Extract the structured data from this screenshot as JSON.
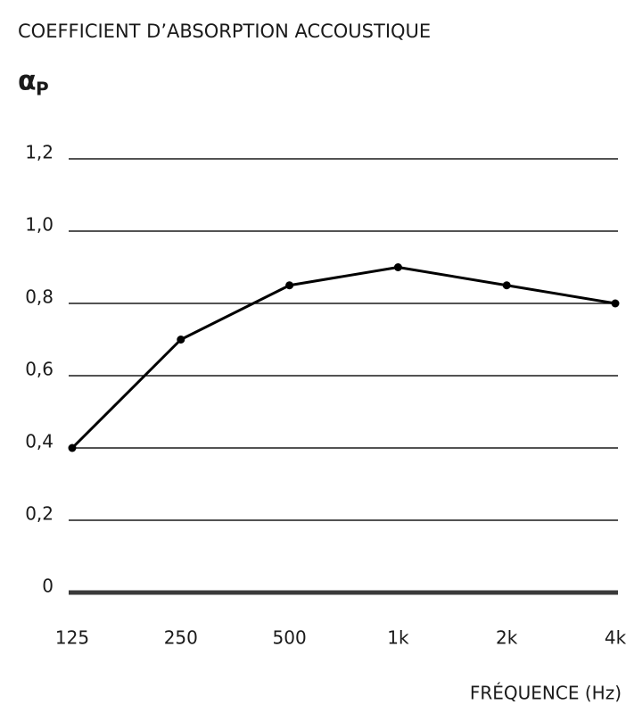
{
  "chart_data": {
    "type": "line",
    "title": "COEFFICIENT D’ABSORPTION ACCOUSTIQUE",
    "y_label": "α",
    "y_label_subscript": "P",
    "x_label": "FRÉQUENCE (Hz)",
    "categories": [
      "125",
      "250",
      "500",
      "1k",
      "2k",
      "4k"
    ],
    "series": [
      {
        "color": "#000000",
        "values": [
          0.4,
          0.7,
          0.85,
          0.9,
          0.85,
          0.8
        ]
      }
    ],
    "ylim": [
      0,
      1.2
    ],
    "yticks": [
      0,
      {
        "value": 0.2,
        "label": "0,2"
      },
      {
        "value": 0.4,
        "label": "0,4"
      },
      {
        "value": 0.6,
        "label": "0,6"
      },
      {
        "value": 0.8,
        "label": "0,8"
      },
      {
        "value": 1.0,
        "label": "1,0"
      },
      {
        "value": 1.2,
        "label": "1,2"
      }
    ],
    "grid": true
  }
}
